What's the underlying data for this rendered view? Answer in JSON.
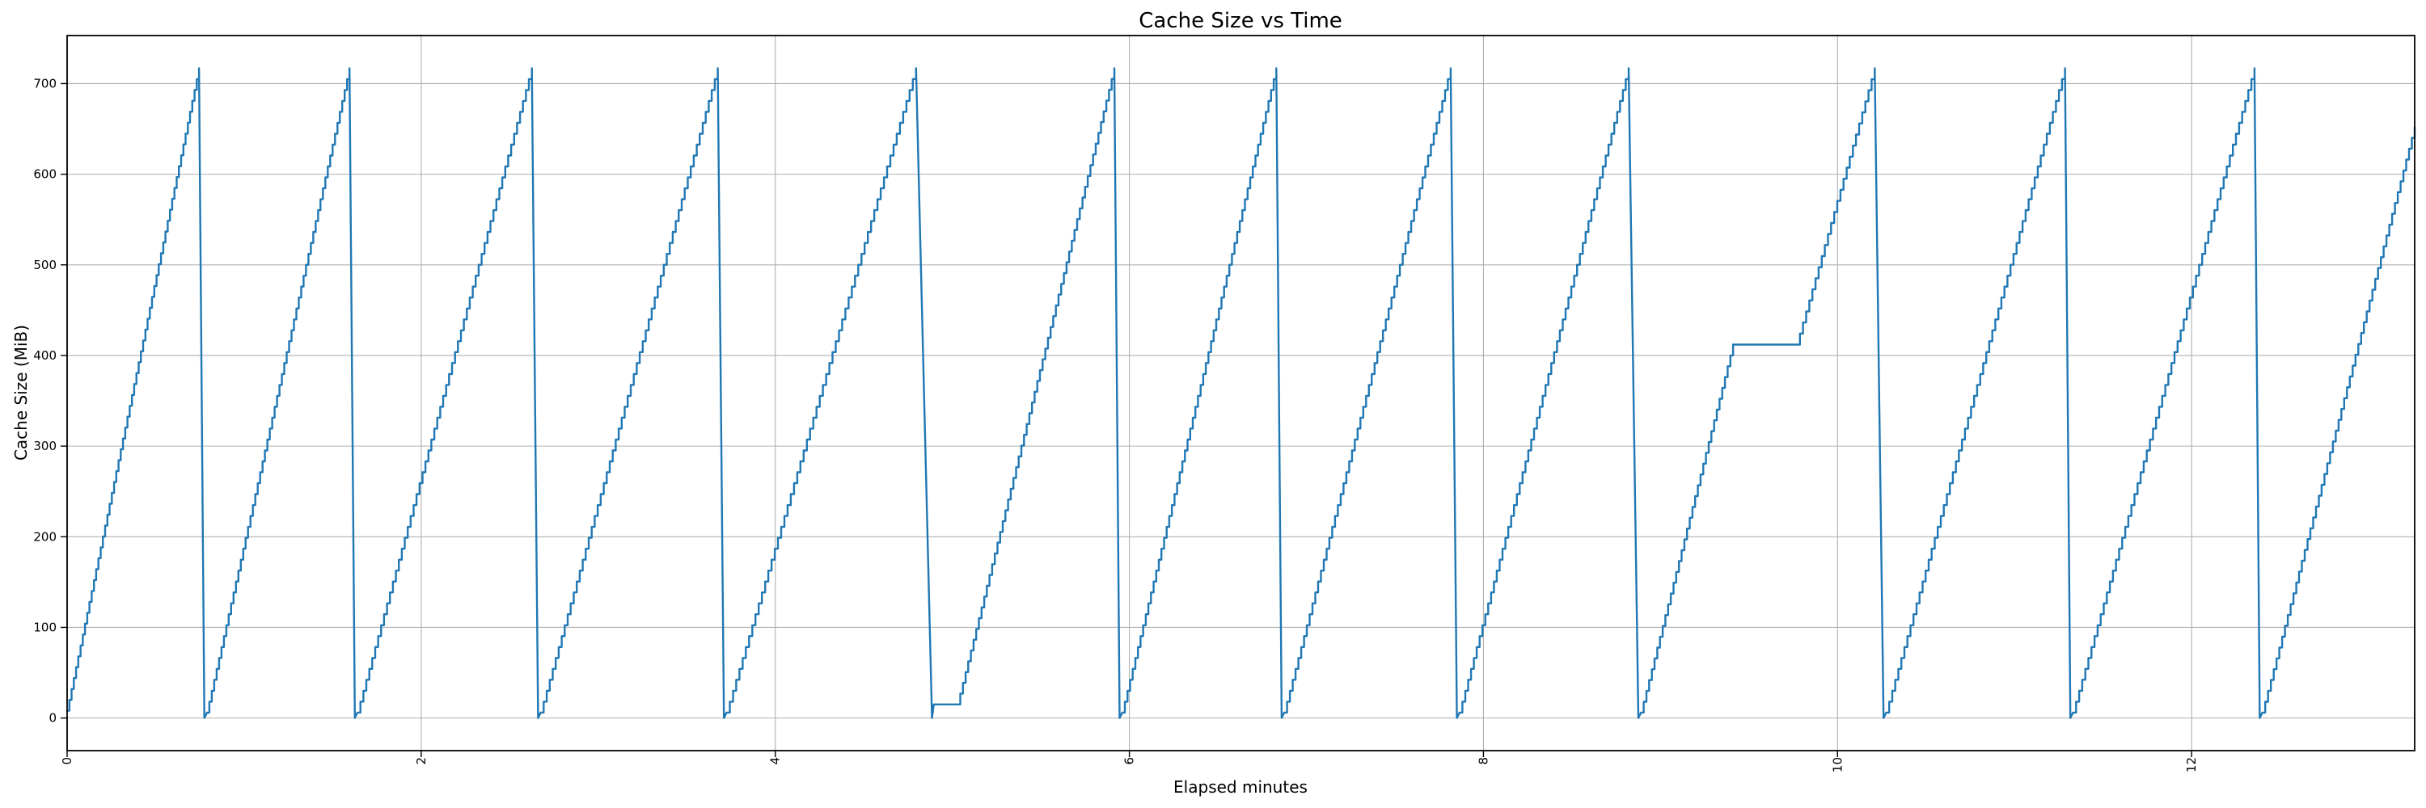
{
  "chart_data": {
    "type": "line",
    "title": "Cache Size vs Time",
    "xlabel": "Elapsed minutes",
    "ylabel": "Cache Size (MiB)",
    "xlim": [
      0,
      13.26
    ],
    "ylim": [
      -36,
      753
    ],
    "x_ticks": [
      0,
      2,
      4,
      6,
      8,
      10,
      12
    ],
    "y_ticks": [
      0,
      100,
      200,
      300,
      400,
      500,
      600,
      700
    ],
    "grid": true,
    "legend_position": "none",
    "line_color": "#1f77b4",
    "grid_color": "#b0b0b0",
    "spine_color": "#000000",
    "background_color": "#ffffff",
    "step_mib": 12,
    "peak_mib": 717,
    "sawtooth_peak_minutes": [
      0.75,
      1.6,
      2.63,
      3.68,
      4.8,
      5.91,
      6.83,
      7.82,
      8.82,
      10.21,
      11.28,
      12.36
    ],
    "anomalies": [
      {
        "type": "low-plateau",
        "value_mib": 15,
        "from_min": 4.9,
        "to_min": 5.03
      },
      {
        "type": "mid-plateau",
        "value_mib": 412,
        "from_min": 9.41,
        "to_min": 9.77
      }
    ],
    "series": [
      {
        "name": "cache_size",
        "points": [
          [
            0,
            8
          ],
          [
            0.745,
            717
          ],
          [
            0.775,
            0
          ],
          [
            0.79,
            6
          ],
          [
            1.595,
            717
          ],
          [
            1.625,
            0
          ],
          [
            1.64,
            6
          ],
          [
            2.625,
            717
          ],
          [
            2.66,
            0
          ],
          [
            2.675,
            6
          ],
          [
            3.675,
            717
          ],
          [
            3.71,
            0
          ],
          [
            3.725,
            6
          ],
          [
            4.795,
            717
          ],
          [
            4.885,
            0
          ],
          [
            4.895,
            15
          ],
          [
            5.03,
            15
          ],
          [
            5.915,
            717
          ],
          [
            5.945,
            0
          ],
          [
            5.96,
            6
          ],
          [
            6.83,
            717
          ],
          [
            6.86,
            0
          ],
          [
            6.875,
            6
          ],
          [
            7.815,
            717
          ],
          [
            7.85,
            0
          ],
          [
            7.865,
            6
          ],
          [
            8.82,
            717
          ],
          [
            8.875,
            0
          ],
          [
            8.89,
            6
          ],
          [
            9.41,
            412
          ],
          [
            9.77,
            412
          ],
          [
            10.21,
            717
          ],
          [
            10.26,
            0
          ],
          [
            10.275,
            6
          ],
          [
            11.285,
            717
          ],
          [
            11.315,
            0
          ],
          [
            11.33,
            6
          ],
          [
            12.355,
            717
          ],
          [
            12.385,
            0
          ],
          [
            12.4,
            6
          ],
          [
            13.26,
            652
          ]
        ]
      }
    ]
  }
}
